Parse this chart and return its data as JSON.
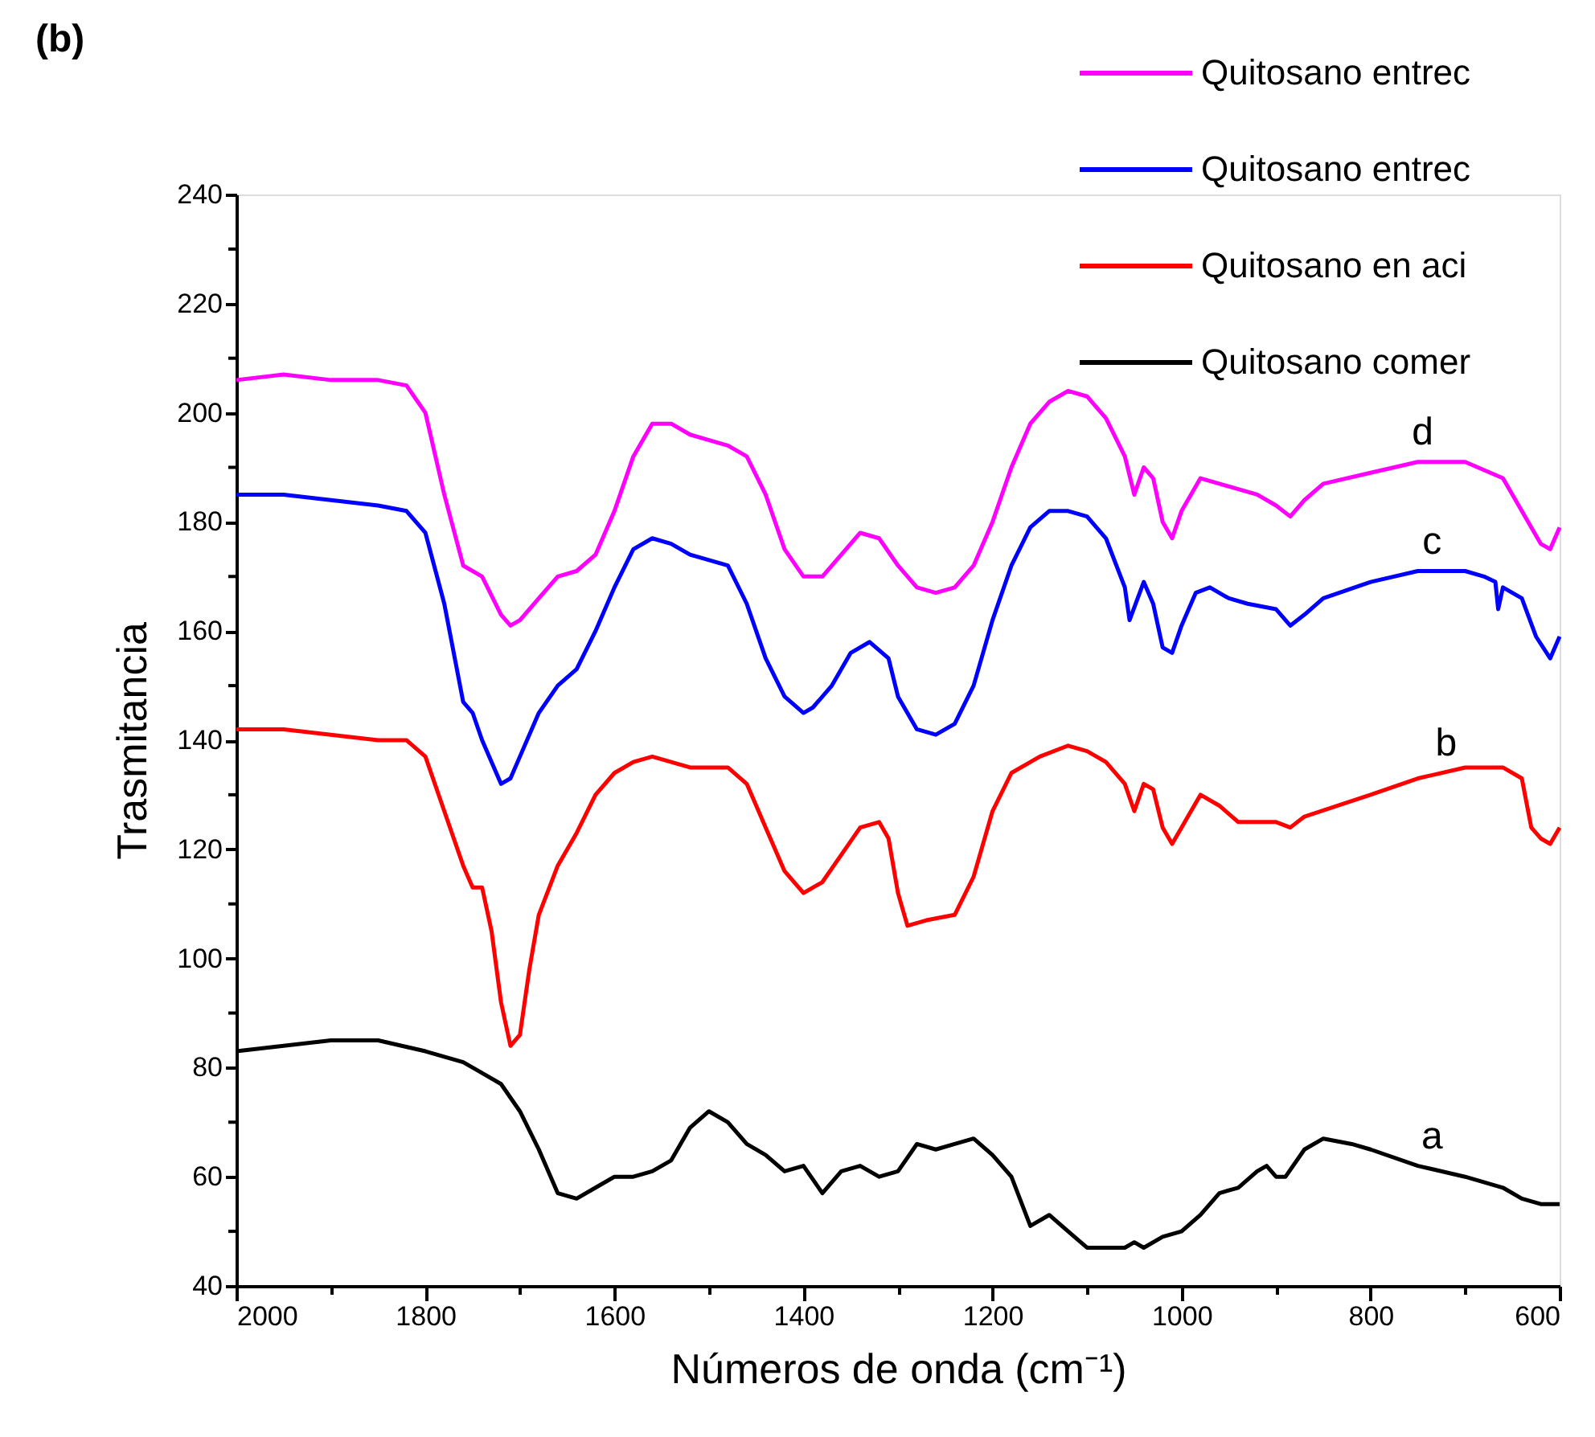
{
  "chart_data": {
    "type": "line",
    "title": "(b)",
    "xlabel": "Números de onda (cm⁻¹)",
    "ylabel": "Trasmitancia",
    "xlim": [
      2000,
      600
    ],
    "ylim": [
      40,
      240
    ],
    "xticks": [
      2000,
      {
        "value": 1900,
        "label": null
      },
      1800,
      {
        "value": 1700,
        "label": null
      },
      1600,
      {
        "value": 1500,
        "label": null
      },
      1400,
      {
        "value": 1300,
        "label": null
      },
      1200,
      {
        "value": 1100,
        "label": null
      },
      1000,
      {
        "value": 900,
        "label": null
      },
      800,
      {
        "value": 700,
        "label": null
      },
      600
    ],
    "yticks": [
      40,
      {
        "value": 50,
        "label": null
      },
      60,
      {
        "value": 70,
        "label": null
      },
      80,
      {
        "value": 90,
        "label": null
      },
      100,
      {
        "value": 110,
        "label": null
      },
      120,
      {
        "value": 130,
        "label": null
      },
      140,
      {
        "value": 150,
        "label": null
      },
      160,
      {
        "value": 170,
        "label": null
      },
      180,
      {
        "value": 190,
        "label": null
      },
      200,
      {
        "value": 210,
        "label": null
      },
      220,
      {
        "value": 230,
        "label": null
      },
      240
    ],
    "grid": false,
    "legend": "top right",
    "marker": "none",
    "line_style": "solid",
    "annotations": [
      {
        "text": "d",
        "x": 745,
        "y": 191
      },
      {
        "text": "c",
        "x": 735,
        "y": 171
      },
      {
        "text": "b",
        "x": 720,
        "y": 134
      },
      {
        "text": "a",
        "x": 735,
        "y": 62
      }
    ],
    "series": [
      {
        "name": "Quitosano entrec",
        "color": "#ff00ff",
        "x": [
          2000,
          1950,
          1900,
          1850,
          1820,
          1800,
          1780,
          1760,
          1740,
          1720,
          1710,
          1700,
          1680,
          1660,
          1640,
          1620,
          1600,
          1580,
          1560,
          1540,
          1520,
          1500,
          1480,
          1460,
          1440,
          1420,
          1400,
          1380,
          1360,
          1340,
          1320,
          1300,
          1280,
          1260,
          1240,
          1220,
          1200,
          1180,
          1160,
          1140,
          1120,
          1100,
          1080,
          1060,
          1050,
          1040,
          1030,
          1020,
          1010,
          1000,
          980,
          960,
          940,
          920,
          900,
          885,
          870,
          850,
          800,
          750,
          700,
          660,
          640,
          620,
          610,
          600
        ],
        "values": [
          206,
          207,
          206,
          206,
          205,
          200,
          185,
          172,
          170,
          163,
          161,
          162,
          166,
          170,
          171,
          174,
          182,
          192,
          198,
          198,
          196,
          195,
          194,
          192,
          185,
          175,
          170,
          170,
          174,
          178,
          177,
          172,
          168,
          167,
          168,
          172,
          180,
          190,
          198,
          202,
          204,
          203,
          199,
          192,
          185,
          190,
          188,
          180,
          177,
          182,
          188,
          187,
          186,
          185,
          183,
          181,
          184,
          187,
          189,
          191,
          191,
          188,
          182,
          176,
          175,
          179
        ]
      },
      {
        "name": "Quitosano entrec",
        "color": "#0000ff",
        "x": [
          2000,
          1950,
          1900,
          1850,
          1820,
          1800,
          1780,
          1760,
          1750,
          1740,
          1720,
          1710,
          1700,
          1680,
          1660,
          1640,
          1620,
          1600,
          1580,
          1560,
          1540,
          1520,
          1500,
          1480,
          1460,
          1440,
          1420,
          1400,
          1390,
          1370,
          1350,
          1330,
          1310,
          1300,
          1280,
          1260,
          1240,
          1220,
          1200,
          1180,
          1160,
          1140,
          1120,
          1100,
          1080,
          1060,
          1055,
          1040,
          1030,
          1020,
          1010,
          1000,
          985,
          970,
          950,
          930,
          900,
          885,
          870,
          850,
          800,
          750,
          700,
          680,
          668,
          665,
          660,
          640,
          625,
          610,
          600
        ],
        "values": [
          185,
          185,
          184,
          183,
          182,
          178,
          165,
          147,
          145,
          140,
          132,
          133,
          137,
          145,
          150,
          153,
          160,
          168,
          175,
          177,
          176,
          174,
          173,
          172,
          165,
          155,
          148,
          145,
          146,
          150,
          156,
          158,
          155,
          148,
          142,
          141,
          143,
          150,
          162,
          172,
          179,
          182,
          182,
          181,
          177,
          168,
          162,
          169,
          165,
          157,
          156,
          161,
          167,
          168,
          166,
          165,
          164,
          161,
          163,
          166,
          169,
          171,
          171,
          170,
          169,
          164,
          168,
          166,
          159,
          155,
          159
        ]
      },
      {
        "name": "Quitosano en aci",
        "color": "#ff0000",
        "x": [
          2000,
          1950,
          1900,
          1850,
          1820,
          1800,
          1780,
          1760,
          1750,
          1740,
          1730,
          1720,
          1710,
          1700,
          1690,
          1680,
          1660,
          1640,
          1620,
          1600,
          1580,
          1560,
          1540,
          1520,
          1480,
          1460,
          1440,
          1420,
          1400,
          1380,
          1360,
          1340,
          1320,
          1310,
          1300,
          1290,
          1270,
          1240,
          1220,
          1200,
          1180,
          1150,
          1120,
          1100,
          1080,
          1060,
          1050,
          1040,
          1030,
          1020,
          1010,
          1000,
          980,
          960,
          940,
          900,
          885,
          870,
          800,
          750,
          700,
          660,
          640,
          630,
          620,
          610,
          600
        ],
        "values": [
          142,
          142,
          141,
          140,
          140,
          137,
          127,
          117,
          113,
          113,
          105,
          92,
          84,
          86,
          98,
          108,
          117,
          123,
          130,
          134,
          136,
          137,
          136,
          135,
          135,
          132,
          124,
          116,
          112,
          114,
          119,
          124,
          125,
          122,
          112,
          106,
          107,
          108,
          115,
          127,
          134,
          137,
          139,
          138,
          136,
          132,
          127,
          132,
          131,
          124,
          121,
          124,
          130,
          128,
          125,
          125,
          124,
          126,
          130,
          133,
          135,
          135,
          133,
          124,
          122,
          121,
          124
        ]
      },
      {
        "name": "Quitosano comer",
        "color": "#000000",
        "x": [
          2000,
          1950,
          1900,
          1850,
          1800,
          1760,
          1740,
          1720,
          1700,
          1680,
          1660,
          1640,
          1620,
          1600,
          1580,
          1560,
          1540,
          1520,
          1500,
          1480,
          1460,
          1440,
          1420,
          1400,
          1380,
          1360,
          1340,
          1320,
          1300,
          1280,
          1260,
          1240,
          1220,
          1200,
          1180,
          1160,
          1140,
          1120,
          1100,
          1080,
          1060,
          1050,
          1040,
          1020,
          1000,
          980,
          960,
          940,
          920,
          910,
          900,
          890,
          870,
          850,
          820,
          800,
          750,
          700,
          660,
          640,
          620,
          600
        ],
        "values": [
          83,
          84,
          85,
          85,
          83,
          81,
          79,
          77,
          72,
          65,
          57,
          56,
          58,
          60,
          60,
          61,
          63,
          69,
          72,
          70,
          66,
          64,
          61,
          62,
          57,
          61,
          62,
          60,
          61,
          66,
          65,
          66,
          67,
          64,
          60,
          51,
          53,
          50,
          47,
          47,
          47,
          48,
          47,
          49,
          50,
          53,
          57,
          58,
          61,
          62,
          60,
          60,
          65,
          67,
          66,
          65,
          62,
          60,
          58,
          56,
          55,
          55
        ]
      }
    ]
  }
}
